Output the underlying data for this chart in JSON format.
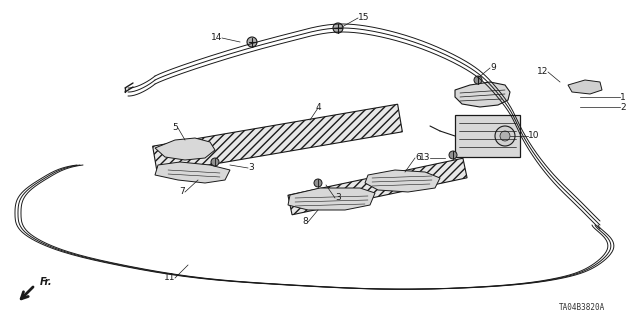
{
  "diagram_code": "TA04B3820A",
  "background_color": "#ffffff",
  "color": "#1a1a1a",
  "lw": 0.8,
  "label_fs": 6.5,
  "figsize": [
    6.4,
    3.19
  ],
  "dpi": 100
}
